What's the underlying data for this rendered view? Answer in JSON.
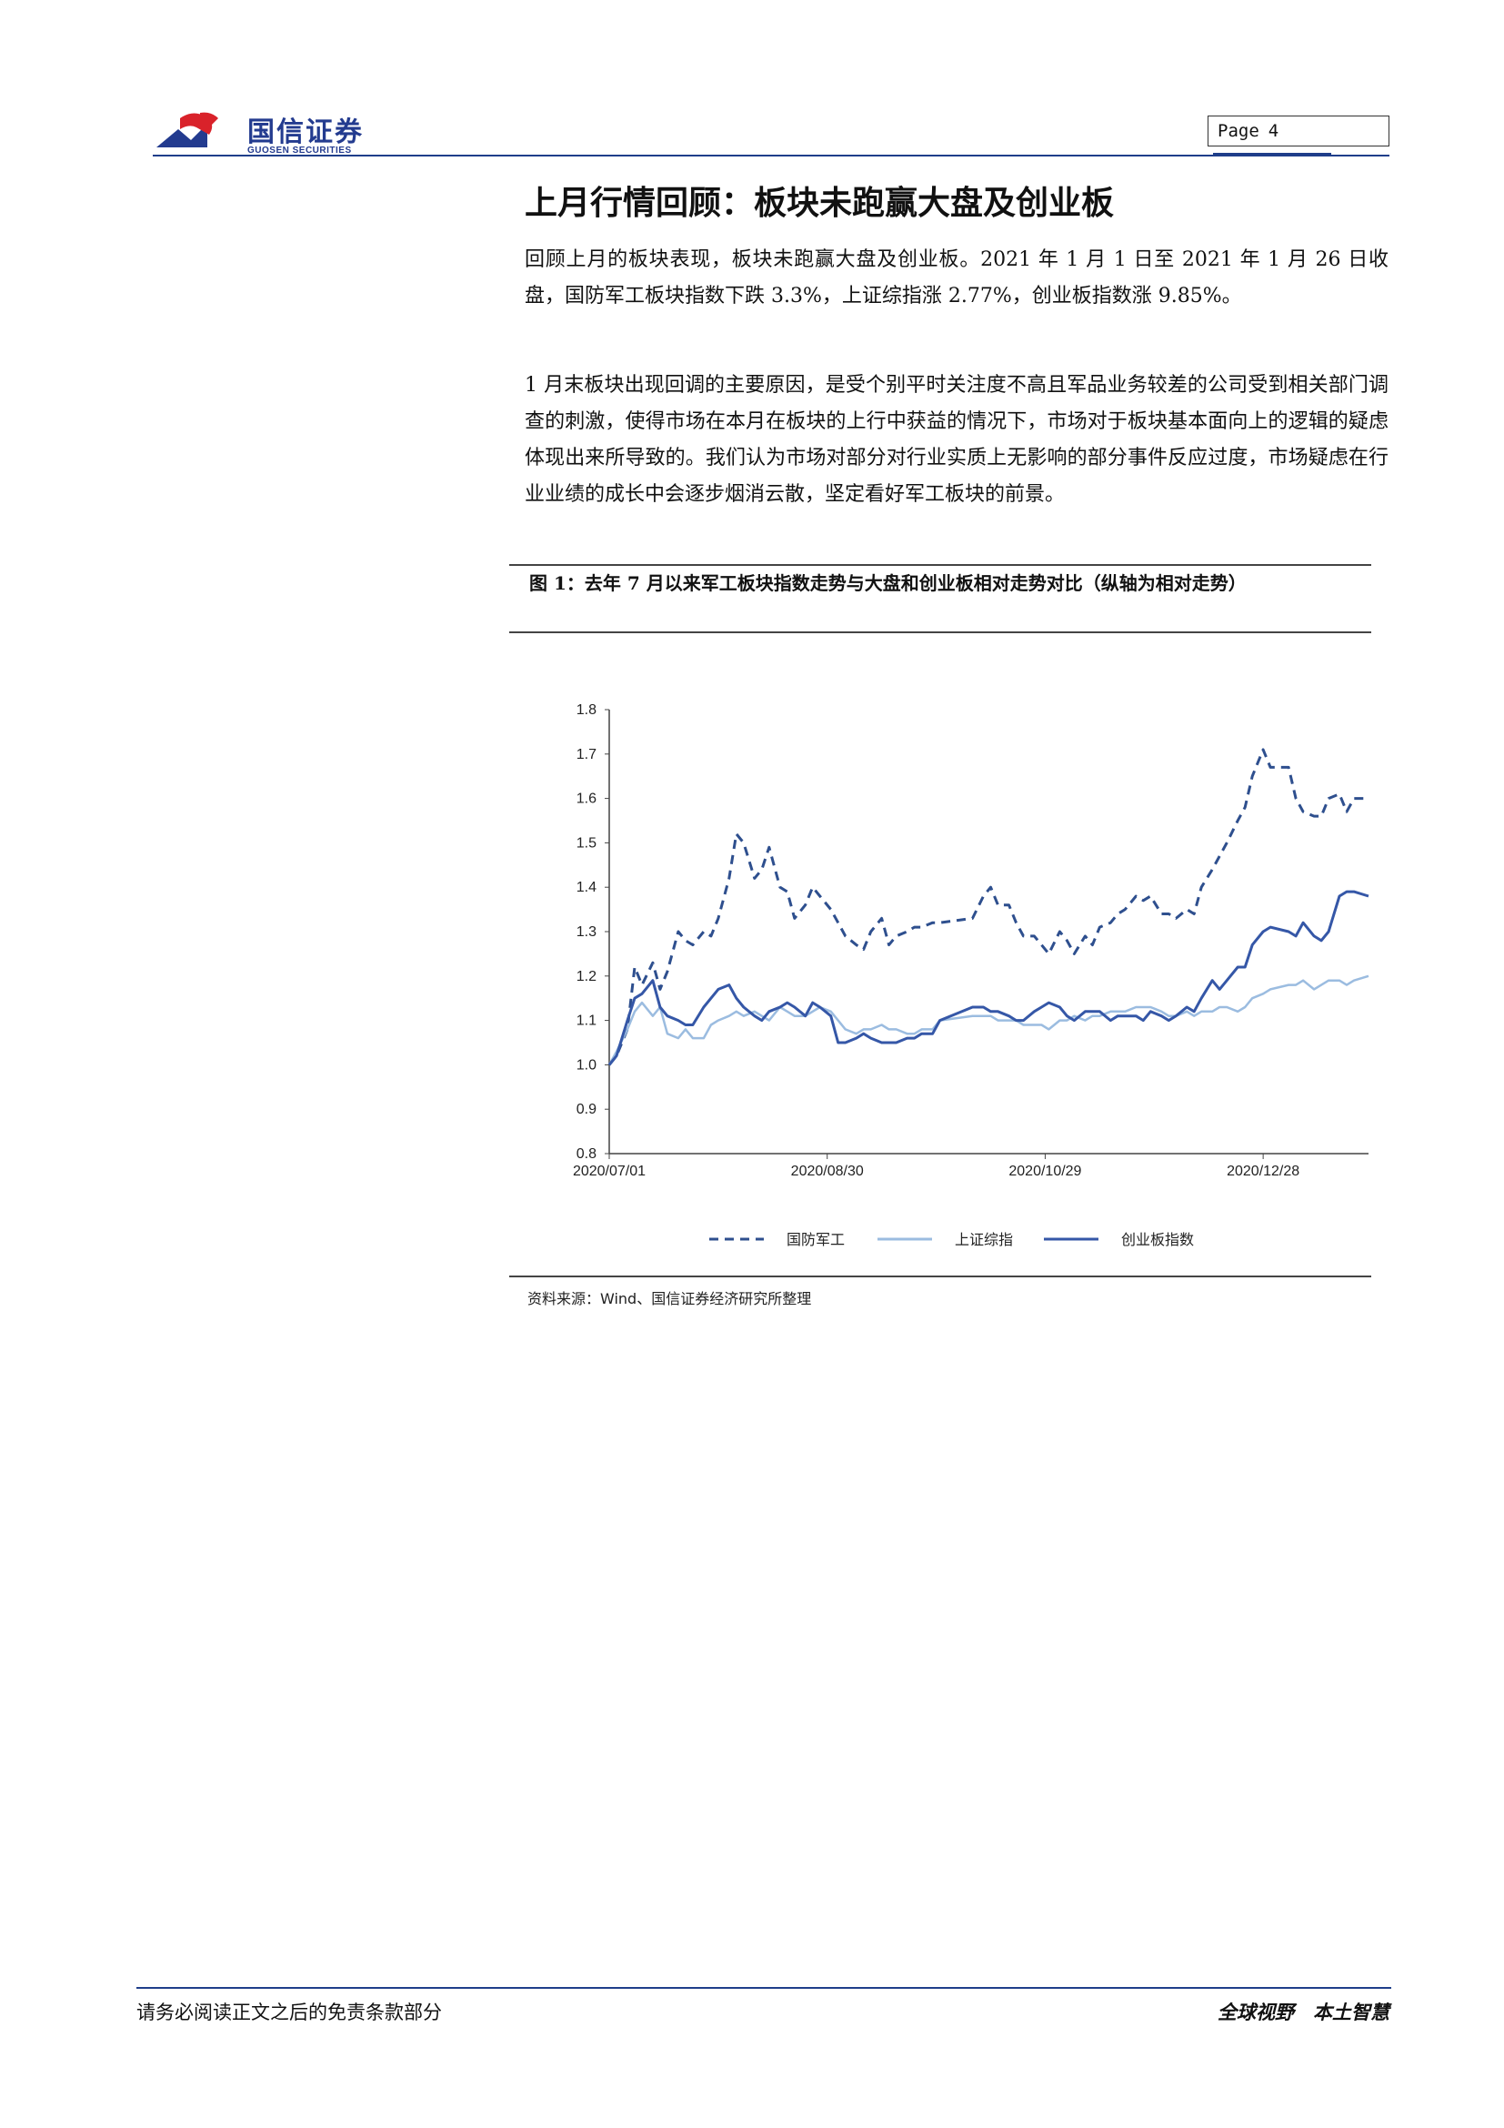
{
  "header": {
    "logo_cn": "国信证券",
    "logo_en": "GUOSEN SECURITIES",
    "page_label": "Page",
    "page_number": "4",
    "brand_color": "#233b8f",
    "accent_color": "#d9222a"
  },
  "heading": "上月行情回顾：板块未跑赢大盘及创业板",
  "paragraphs": [
    "回顾上月的板块表现，板块未跑赢大盘及创业板。2021 年 1 月 1 日至 2021 年 1 月 26 日收盘，国防军工板块指数下跌 3.3%，上证综指涨 2.77%，创业板指数涨 9.85%。",
    "1 月末板块出现回调的主要原因，是受个别平时关注度不高且军品业务较差的公司受到相关部门调查的刺激，使得市场在本月在板块的上行中获益的情况下，市场对于板块基本面向上的逻辑的疑虑体现出来所导致的。我们认为市场对部分对行业实质上无影响的部分事件反应过度，市场疑虑在行业业绩的成长中会逐步烟消云散，坚定看好军工板块的前景。"
  ],
  "figure": {
    "title": "图 1：去年 7 月以来军工板块指数走势与大盘和创业板相对走势对比（纵轴为相对走势）",
    "source": "资料来源：Wind、国信证券经济研究所整理"
  },
  "chart_data": {
    "type": "line",
    "title": "",
    "xlabel": "",
    "ylabel": "",
    "ylim": [
      0.8,
      1.8
    ],
    "yticks": [
      "0.8",
      "0.9",
      "1.0",
      "1.1",
      "1.2",
      "1.3",
      "1.4",
      "1.5",
      "1.6",
      "1.7",
      "1.8"
    ],
    "xlim": [
      "2020/07/01",
      "2021/01/26"
    ],
    "xticks": [
      "2020/07/01",
      "2020/08/30",
      "2020/10/29",
      "2020/12/28"
    ],
    "x": [
      "2020/07/01",
      "2020/07/03",
      "2020/07/06",
      "2020/07/08",
      "2020/07/10",
      "2020/07/13",
      "2020/07/15",
      "2020/07/17",
      "2020/07/20",
      "2020/07/22",
      "2020/07/24",
      "2020/07/27",
      "2020/07/29",
      "2020/07/31",
      "2020/08/03",
      "2020/08/05",
      "2020/08/07",
      "2020/08/10",
      "2020/08/12",
      "2020/08/14",
      "2020/08/17",
      "2020/08/19",
      "2020/08/21",
      "2020/08/24",
      "2020/08/26",
      "2020/08/28",
      "2020/08/31",
      "2020/09/02",
      "2020/09/04",
      "2020/09/07",
      "2020/09/09",
      "2020/09/11",
      "2020/09/14",
      "2020/09/16",
      "2020/09/18",
      "2020/09/21",
      "2020/09/23",
      "2020/09/25",
      "2020/09/28",
      "2020/09/30",
      "2020/10/09",
      "2020/10/12",
      "2020/10/14",
      "2020/10/16",
      "2020/10/19",
      "2020/10/21",
      "2020/10/23",
      "2020/10/26",
      "2020/10/28",
      "2020/10/30",
      "2020/11/02",
      "2020/11/04",
      "2020/11/06",
      "2020/11/09",
      "2020/11/11",
      "2020/11/13",
      "2020/11/16",
      "2020/11/18",
      "2020/11/20",
      "2020/11/23",
      "2020/11/25",
      "2020/11/27",
      "2020/11/30",
      "2020/12/02",
      "2020/12/04",
      "2020/12/07",
      "2020/12/09",
      "2020/12/11",
      "2020/12/14",
      "2020/12/16",
      "2020/12/18",
      "2020/12/21",
      "2020/12/23",
      "2020/12/25",
      "2020/12/28",
      "2020/12/30",
      "2021/01/04",
      "2021/01/06",
      "2021/01/08",
      "2021/01/11",
      "2021/01/13",
      "2021/01/15",
      "2021/01/18",
      "2021/01/20",
      "2021/01/22",
      "2021/01/26"
    ],
    "series": [
      {
        "name": "国防军工",
        "color": "#2e4f8e",
        "dash": "dashed",
        "values": [
          1.0,
          1.02,
          1.08,
          1.22,
          1.18,
          1.23,
          1.17,
          1.21,
          1.3,
          1.28,
          1.27,
          1.3,
          1.29,
          1.33,
          1.42,
          1.52,
          1.5,
          1.42,
          1.44,
          1.49,
          1.4,
          1.39,
          1.33,
          1.36,
          1.4,
          1.38,
          1.35,
          1.32,
          1.29,
          1.27,
          1.26,
          1.3,
          1.33,
          1.27,
          1.29,
          1.3,
          1.31,
          1.31,
          1.32,
          1.32,
          1.33,
          1.38,
          1.4,
          1.36,
          1.36,
          1.32,
          1.29,
          1.29,
          1.27,
          1.25,
          1.3,
          1.28,
          1.25,
          1.29,
          1.27,
          1.31,
          1.32,
          1.34,
          1.35,
          1.38,
          1.37,
          1.38,
          1.34,
          1.34,
          1.33,
          1.35,
          1.34,
          1.4,
          1.44,
          1.47,
          1.5,
          1.55,
          1.58,
          1.65,
          1.71,
          1.67,
          1.67,
          1.6,
          1.57,
          1.56,
          1.56,
          1.6,
          1.61,
          1.57,
          1.6,
          1.6
        ]
      },
      {
        "name": "上证综指",
        "color": "#9bbce0",
        "dash": "solid",
        "values": [
          1.0,
          1.03,
          1.08,
          1.12,
          1.14,
          1.11,
          1.13,
          1.07,
          1.06,
          1.08,
          1.06,
          1.06,
          1.09,
          1.1,
          1.11,
          1.12,
          1.11,
          1.12,
          1.11,
          1.1,
          1.13,
          1.12,
          1.11,
          1.11,
          1.12,
          1.13,
          1.12,
          1.1,
          1.08,
          1.07,
          1.08,
          1.08,
          1.09,
          1.08,
          1.08,
          1.07,
          1.07,
          1.08,
          1.08,
          1.1,
          1.11,
          1.11,
          1.11,
          1.1,
          1.1,
          1.1,
          1.09,
          1.09,
          1.09,
          1.08,
          1.1,
          1.1,
          1.11,
          1.1,
          1.11,
          1.11,
          1.12,
          1.12,
          1.12,
          1.13,
          1.13,
          1.13,
          1.12,
          1.11,
          1.11,
          1.12,
          1.11,
          1.12,
          1.12,
          1.13,
          1.13,
          1.12,
          1.13,
          1.15,
          1.16,
          1.17,
          1.18,
          1.18,
          1.19,
          1.17,
          1.18,
          1.19,
          1.19,
          1.18,
          1.19,
          1.2
        ]
      },
      {
        "name": "创业板指数",
        "color": "#3557a7",
        "dash": "solid",
        "values": [
          1.0,
          1.02,
          1.1,
          1.15,
          1.16,
          1.19,
          1.13,
          1.11,
          1.1,
          1.09,
          1.09,
          1.13,
          1.15,
          1.17,
          1.18,
          1.15,
          1.13,
          1.11,
          1.1,
          1.12,
          1.13,
          1.14,
          1.13,
          1.11,
          1.14,
          1.13,
          1.11,
          1.05,
          1.05,
          1.06,
          1.07,
          1.06,
          1.05,
          1.05,
          1.05,
          1.06,
          1.06,
          1.07,
          1.07,
          1.1,
          1.13,
          1.13,
          1.12,
          1.12,
          1.11,
          1.1,
          1.1,
          1.12,
          1.13,
          1.14,
          1.13,
          1.11,
          1.1,
          1.12,
          1.12,
          1.12,
          1.1,
          1.11,
          1.11,
          1.11,
          1.1,
          1.12,
          1.11,
          1.1,
          1.11,
          1.13,
          1.12,
          1.15,
          1.19,
          1.17,
          1.19,
          1.22,
          1.22,
          1.27,
          1.3,
          1.31,
          1.3,
          1.29,
          1.32,
          1.29,
          1.28,
          1.3,
          1.38,
          1.39,
          1.39,
          1.38
        ]
      }
    ],
    "legend": [
      "国防军工",
      "上证综指",
      "创业板指数"
    ],
    "legend_position": "bottom",
    "grid": false
  },
  "footer": {
    "left": "请务必阅读正文之后的免责条款部分",
    "right": "全球视野　本土智慧"
  }
}
